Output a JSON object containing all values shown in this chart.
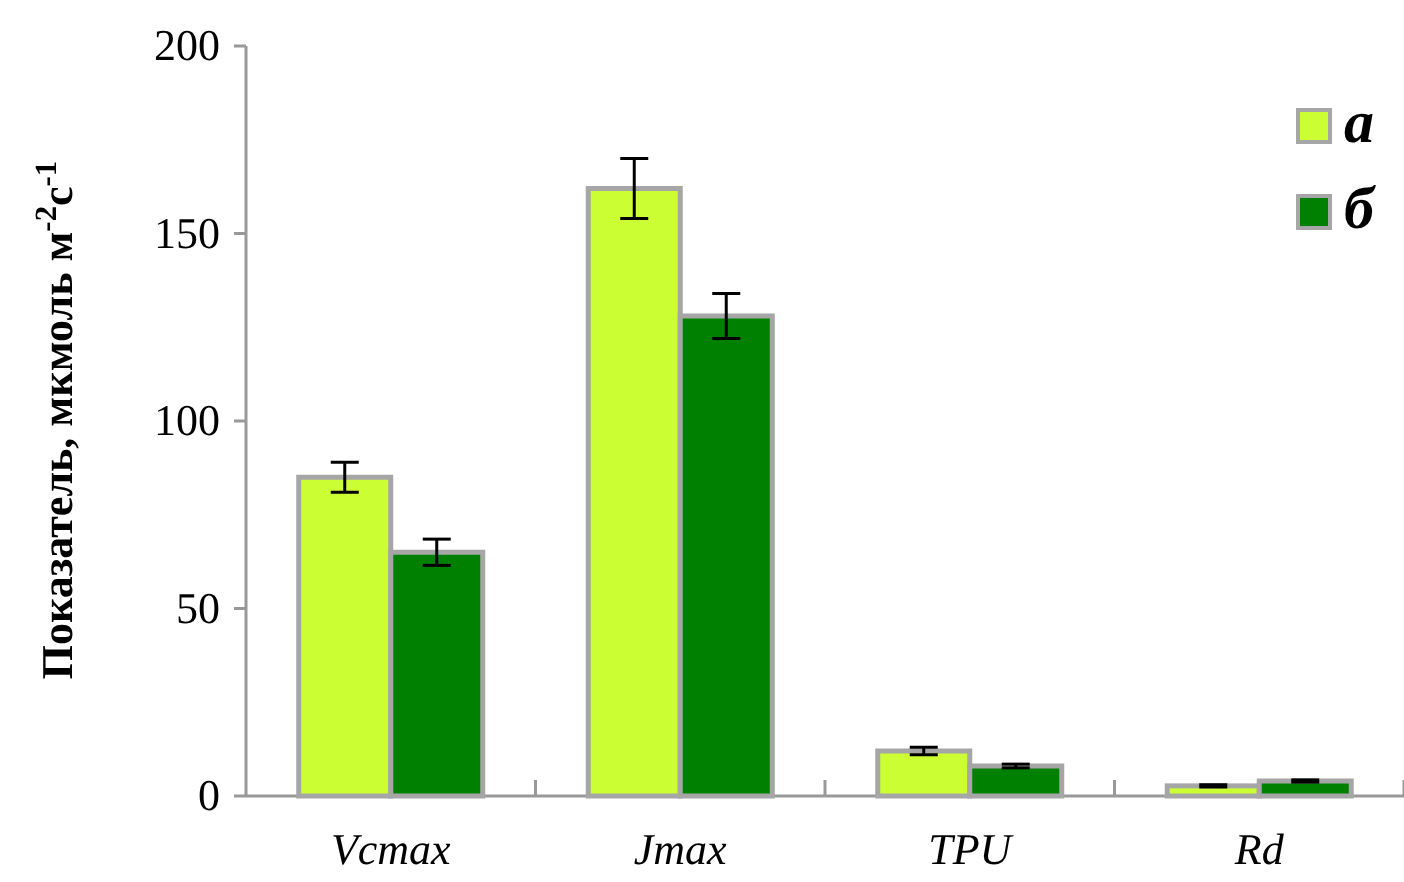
{
  "chart_data": {
    "type": "bar",
    "ylabel": "Показатель, мкмоль м$^{-2}$с$^{-1}$",
    "categories": [
      "Vcmax",
      "Jmax",
      "TPU",
      "Rd"
    ],
    "series": [
      {
        "name": "а",
        "color": "#ccff33",
        "values": [
          85,
          162,
          12,
          2.7
        ],
        "errors": [
          4,
          8,
          1,
          0.3
        ]
      },
      {
        "name": "б",
        "color": "#008000",
        "values": [
          65,
          128,
          8,
          4
        ],
        "errors": [
          3.5,
          6,
          0.5,
          0.3
        ]
      }
    ],
    "ylim": [
      0,
      200
    ],
    "yticks": [
      0,
      50,
      100,
      150,
      200
    ],
    "grid": false,
    "legend": "top right"
  }
}
